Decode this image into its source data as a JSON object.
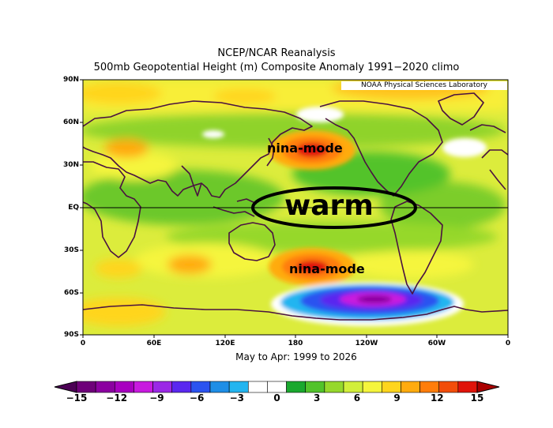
{
  "title_line1": "NCEP/NCAR Reanalysis",
  "title_line2": "500mb Geopotential Height (m) Composite Anomaly 1991−2020 climo",
  "credit": "NOAA Physical Sciences Laboratory",
  "period_label": "May to Apr: 1999 to 2026",
  "lat_labels": [
    "90N",
    "60N",
    "30N",
    "EQ",
    "30S",
    "60S",
    "90S"
  ],
  "lon_labels": [
    "0",
    "60E",
    "120E",
    "180",
    "120W",
    "60W",
    "0"
  ],
  "annotations": {
    "nina_north": "nina-mode",
    "warm": "warm",
    "nina_south": "nina-mode"
  },
  "colorbar": {
    "ticks": [
      "−15",
      "−12",
      "−9",
      "−6",
      "−3",
      "0",
      "3",
      "6",
      "9",
      "12",
      "15"
    ],
    "colors": [
      "#6e0079",
      "#8b00a0",
      "#a800c0",
      "#c81adf",
      "#9b28e6",
      "#5a28ef",
      "#2b53f0",
      "#1e8ee6",
      "#23b5f0",
      "#ffffff",
      "#ffffff",
      "#1aa82e",
      "#52c32b",
      "#96d82c",
      "#d2ef3a",
      "#f5f53c",
      "#ffd51d",
      "#ffab0e",
      "#ff7d0a",
      "#f24d0a",
      "#e0140a"
    ],
    "under_color": "#4b0054",
    "over_color": "#aa0000"
  },
  "colors": {
    "land_outline": "#4a1240",
    "field_background": "#dcec3c",
    "annotation_ring": "#000000"
  }
}
